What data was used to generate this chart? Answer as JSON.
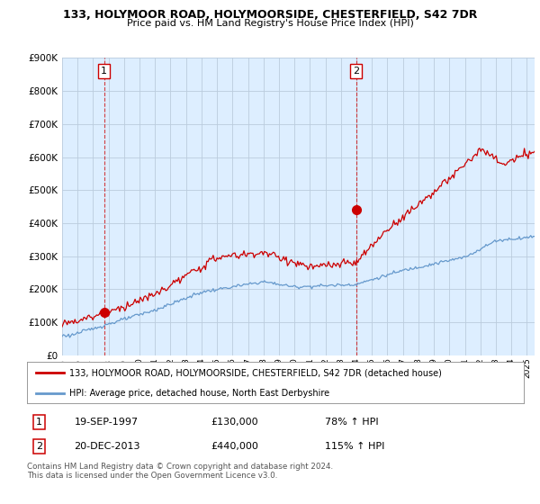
{
  "title": "133, HOLYMOOR ROAD, HOLYMOORSIDE, CHESTERFIELD, S42 7DR",
  "subtitle": "Price paid vs. HM Land Registry's House Price Index (HPI)",
  "legend_line1": "133, HOLYMOOR ROAD, HOLYMOORSIDE, CHESTERFIELD, S42 7DR (detached house)",
  "legend_line2": "HPI: Average price, detached house, North East Derbyshire",
  "transaction1_date": "19-SEP-1997",
  "transaction1_price": "£130,000",
  "transaction1_hpi": "78% ↑ HPI",
  "transaction2_date": "20-DEC-2013",
  "transaction2_price": "£440,000",
  "transaction2_hpi": "115% ↑ HPI",
  "footnote": "Contains HM Land Registry data © Crown copyright and database right 2024.\nThis data is licensed under the Open Government Licence v3.0.",
  "house_color": "#cc0000",
  "hpi_color": "#6699cc",
  "vline_color": "#cc0000",
  "bg_chart": "#ddeeff",
  "background_color": "#ffffff",
  "grid_color": "#bbccdd",
  "ylim": [
    0,
    900000
  ],
  "yticks": [
    0,
    100000,
    200000,
    300000,
    400000,
    500000,
    600000,
    700000,
    800000,
    900000
  ],
  "xlim_start": 1995.0,
  "xlim_end": 2025.5,
  "transaction1_x": 1997.72,
  "transaction1_y": 130000,
  "transaction2_x": 2013.97,
  "transaction2_y": 440000
}
